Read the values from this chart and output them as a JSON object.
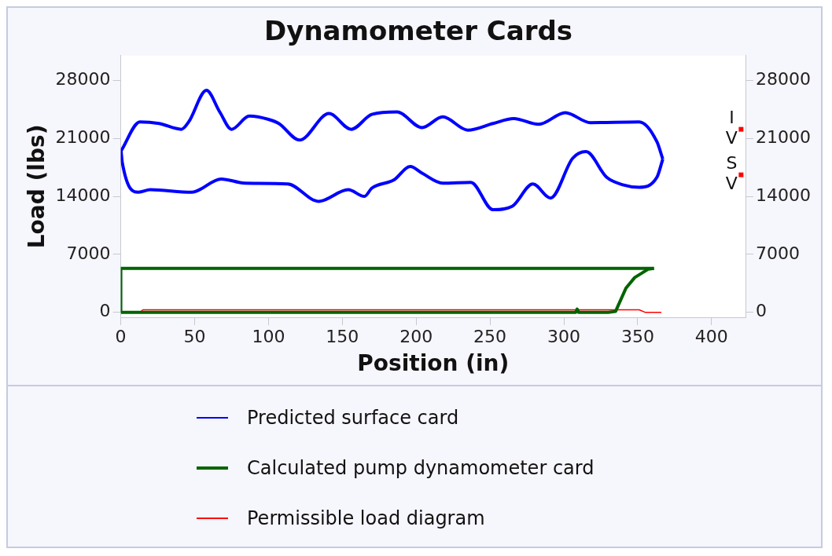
{
  "chart_data": {
    "type": "line",
    "title": "Dynamometer Cards",
    "xlabel": "Position (in)",
    "ylabel": "Load (lbs)",
    "xlim": [
      0,
      423
    ],
    "xticks": [
      0,
      50,
      100,
      150,
      200,
      250,
      300,
      350,
      400
    ],
    "ylim": [
      -600,
      31000
    ],
    "yticks": [
      0,
      7000,
      14000,
      21000,
      28000
    ],
    "y2lim": [
      -600,
      31000
    ],
    "y2ticks": [
      0,
      7000,
      14000,
      21000,
      28000
    ],
    "grid": false,
    "legend": "bottom",
    "marker": "none",
    "line_style": "solid",
    "series": [
      {
        "name": "Predicted surface card",
        "color": "#0000ff",
        "x": [
          0.2,
          13,
          26,
          41,
          46,
          58,
          67,
          75,
          87,
          100,
          107,
          121,
          141,
          156,
          170,
          187,
          204,
          218,
          235,
          252,
          266,
          283,
          301,
          318,
          351,
          363,
          367
        ],
        "values": [
          19500,
          23000,
          22800,
          22100,
          23000,
          26800,
          24200,
          22100,
          23700,
          23300,
          22800,
          20800,
          24000,
          22100,
          23900,
          24200,
          22300,
          23600,
          22000,
          22800,
          23400,
          22700,
          24100,
          22900,
          23000,
          20600,
          18500
        ]
      },
      {
        "color": "#0000ff",
        "x": [
          0.2,
          1,
          12,
          20,
          48,
          68,
          84,
          113,
          134,
          154,
          165,
          170,
          185,
          196,
          204,
          218,
          237,
          252,
          265,
          279,
          291,
          306,
          315,
          329,
          340,
          351,
          363,
          367
        ],
        "values": [
          19500,
          18100,
          14500,
          14800,
          14500,
          16100,
          15600,
          15500,
          13400,
          14800,
          14000,
          15000,
          16000,
          17600,
          16800,
          15600,
          15700,
          12400,
          12800,
          15500,
          13800,
          18600,
          19400,
          16300,
          15400,
          15100,
          16300,
          18500
        ]
      },
      {
        "name": "Calculated pump dynamometer card",
        "color": "#006400",
        "x": [
          0,
          0,
          361
        ],
        "values": [
          0,
          5300,
          5300
        ]
      },
      {
        "color": "#006400",
        "x": [
          0,
          308,
          309,
          310,
          330,
          335,
          342,
          348,
          357,
          361
        ],
        "values": [
          0,
          0,
          400,
          0,
          0,
          100,
          2900,
          4200,
          5200,
          5300
        ]
      },
      {
        "name": "Permissible load diagram",
        "color": "#ff0000",
        "x": [
          13,
          15,
          351,
          355,
          366
        ],
        "values": [
          0,
          300,
          300,
          0,
          0
        ]
      }
    ],
    "annotations": [
      {
        "text": "IV",
        "x": 420,
        "y": 22100
      },
      {
        "text": "SV",
        "x": 420,
        "y": 16600
      }
    ]
  }
}
